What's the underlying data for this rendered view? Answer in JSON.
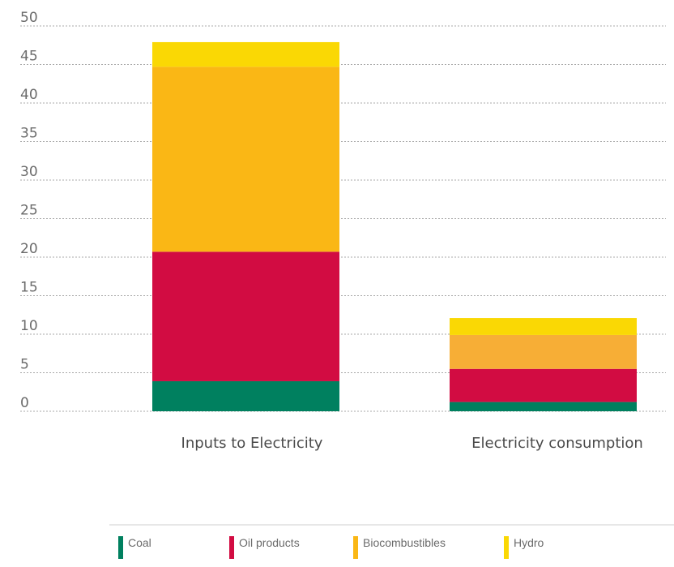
{
  "chart_data": {
    "type": "bar",
    "stacked": true,
    "categories": [
      "Inputs to Electricity",
      "Electricity consumption"
    ],
    "series": [
      {
        "name": "Coal",
        "color": "#00805f",
        "values": [
          3.9,
          1.2
        ]
      },
      {
        "name": "Oil products",
        "color": "#d20c42",
        "values": [
          16.8,
          4.3
        ]
      },
      {
        "name": "Biocombustibles",
        "color": "#fab715",
        "values": [
          24.0,
          4.4
        ]
      },
      {
        "name": "Hydro",
        "color": "#fad804",
        "values": [
          3.2,
          2.2
        ]
      }
    ],
    "series_colors_by_category": [
      [
        "#00805f",
        "#d20c42",
        "#fab715",
        "#fad804"
      ],
      [
        "#00805f",
        "#d20c42",
        "#f7ae36",
        "#fad804"
      ]
    ],
    "yticks": [
      0,
      5,
      10,
      15,
      20,
      25,
      30,
      35,
      40,
      45,
      50
    ],
    "ylim": [
      0,
      50
    ],
    "grid": true,
    "grid_style": "dotted",
    "legend": "bottom",
    "title": "",
    "xlabel": "",
    "ylabel": ""
  }
}
